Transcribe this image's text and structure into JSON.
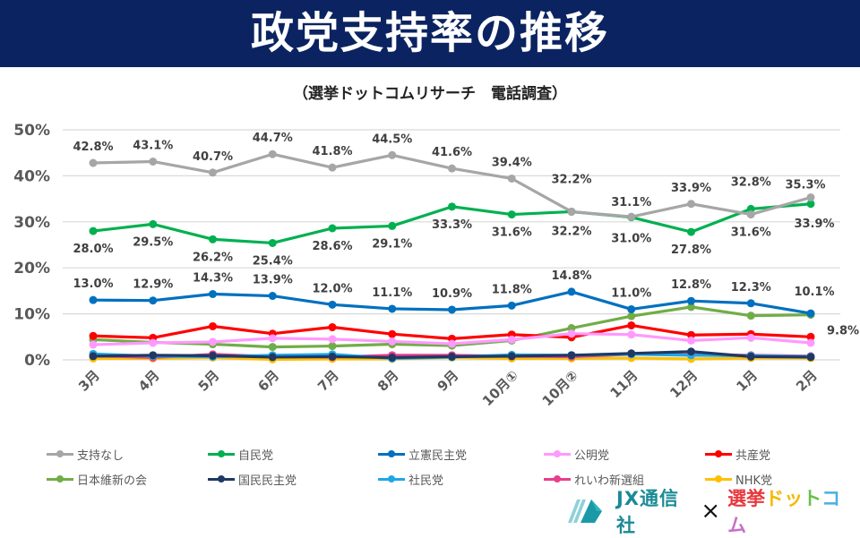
{
  "header": {
    "title": "政党支持率の推移",
    "subtitle": "（選挙ドットコムリサーチ　電話調査）",
    "banner_color": "#0b2461"
  },
  "chart_data": {
    "type": "line",
    "title": "政党支持率の推移",
    "subtitle": "（選挙ドットコムリサーチ　電話調査）",
    "xlabel": "",
    "ylabel": "",
    "ylim": [
      0,
      50
    ],
    "yticks": [
      0,
      10,
      20,
      30,
      40,
      50
    ],
    "ytick_labels": [
      "0%",
      "10%",
      "20%",
      "30%",
      "40%",
      "50%"
    ],
    "grid": true,
    "legend_position": "bottom",
    "categories": [
      "3月",
      "4月",
      "5月",
      "6月",
      "7月",
      "8月",
      "9月",
      "10月①",
      "10月②",
      "11月",
      "12月",
      "1月",
      "2月"
    ],
    "series": [
      {
        "name": "支持なし",
        "color": "#a6a6a6",
        "labeled": true,
        "label_pos": "above",
        "values": [
          42.8,
          43.1,
          40.7,
          44.7,
          41.8,
          44.5,
          41.6,
          39.4,
          32.2,
          31.1,
          33.9,
          31.6,
          35.3
        ],
        "data_labels": [
          "42.8%",
          "43.1%",
          "40.7%",
          "44.7%",
          "41.8%",
          "44.5%",
          "41.6%",
          "39.4%",
          "32.2%",
          "31.1%",
          "33.9%",
          "31.6%",
          "35.3%"
        ]
      },
      {
        "name": "自民党",
        "color": "#00b050",
        "labeled": true,
        "label_pos": "below",
        "values": [
          28.0,
          29.5,
          26.2,
          25.4,
          28.6,
          29.1,
          33.3,
          31.6,
          32.2,
          31.0,
          27.8,
          32.8,
          33.9
        ],
        "data_labels": [
          "28.0%",
          "29.5%",
          "26.2%",
          "25.4%",
          "28.6%",
          "29.1%",
          "33.3%",
          "31.6%",
          "32.2%",
          "31.0%",
          "27.8%",
          "32.8%",
          "33.9%"
        ]
      },
      {
        "name": "立憲民主党",
        "color": "#0070c0",
        "labeled": true,
        "label_pos": "above",
        "values": [
          13.0,
          12.9,
          14.3,
          13.9,
          12.0,
          11.1,
          10.9,
          11.8,
          14.8,
          11.0,
          12.8,
          12.3,
          10.1
        ],
        "data_labels": [
          "13.0%",
          "12.9%",
          "14.3%",
          "13.9%",
          "12.0%",
          "11.1%",
          "10.9%",
          "11.8%",
          "14.8%",
          "11.0%",
          "12.8%",
          "12.3%",
          "10.1%"
        ]
      },
      {
        "name": "公明党",
        "color": "#ff99ff",
        "labeled": false,
        "values": [
          3.3,
          3.7,
          3.9,
          4.7,
          4.5,
          4.0,
          3.5,
          4.4,
          5.7,
          5.5,
          4.2,
          4.8,
          3.7
        ]
      },
      {
        "name": "共産党",
        "color": "#ff0000",
        "labeled": false,
        "values": [
          5.2,
          4.8,
          7.3,
          5.7,
          7.1,
          5.6,
          4.6,
          5.5,
          4.9,
          7.5,
          5.4,
          5.6,
          5.0
        ]
      },
      {
        "name": "日本維新の会",
        "color": "#70ad47",
        "labeled": true,
        "label_pos": "below_right",
        "values": [
          4.4,
          3.8,
          3.4,
          2.8,
          3.0,
          3.4,
          3.1,
          4.2,
          6.9,
          9.5,
          11.5,
          9.6,
          9.8
        ],
        "data_labels": [
          "",
          "",
          "",
          "",
          "",
          "",
          "",
          "",
          "",
          "",
          "",
          "",
          "9.8%"
        ]
      },
      {
        "name": "国民民主党",
        "color": "#203864",
        "labeled": false,
        "values": [
          0.8,
          1.0,
          0.9,
          0.6,
          0.7,
          0.5,
          0.7,
          0.8,
          1.0,
          1.4,
          1.8,
          0.7,
          0.6
        ]
      },
      {
        "name": "社民党",
        "color": "#1ea7e8",
        "labeled": false,
        "values": [
          1.3,
          0.8,
          0.7,
          1.0,
          1.2,
          0.3,
          0.6,
          1.1,
          1.0,
          1.2,
          1.0,
          0.9,
          0.7
        ]
      },
      {
        "name": "れいわ新選組",
        "color": "#e83e8c",
        "labeled": false,
        "values": [
          0.9,
          0.5,
          1.2,
          0.7,
          0.6,
          1.0,
          1.0,
          0.8,
          0.7,
          1.2,
          1.1,
          1.0,
          0.8
        ]
      },
      {
        "name": "NHK党",
        "color": "#ffc000",
        "labeled": false,
        "values": [
          0.3,
          0.3,
          0.5,
          0.1,
          0.2,
          0.2,
          0.5,
          0.3,
          0.3,
          0.4,
          0.2,
          0.4,
          0.4
        ]
      }
    ]
  },
  "legend": {
    "items": [
      "支持なし",
      "自民党",
      "立憲民主党",
      "公明党",
      "共産党",
      "日本維新の会",
      "国民民主党",
      "社民党",
      "れいわ新選組",
      "NHK党"
    ]
  },
  "footer": {
    "jx_label": "JX通信社",
    "times": "×",
    "senkyo_chars": [
      {
        "ch": "選",
        "color": "#e8383d"
      },
      {
        "ch": "挙",
        "color": "#e8383d"
      },
      {
        "ch": "ド",
        "color": "#f5b800"
      },
      {
        "ch": "ッ",
        "color": "#f5b800"
      },
      {
        "ch": "ト",
        "color": "#6cbf4b"
      },
      {
        "ch": "コ",
        "color": "#4ab0e0"
      },
      {
        "ch": "ム",
        "color": "#c86fc8"
      }
    ]
  }
}
